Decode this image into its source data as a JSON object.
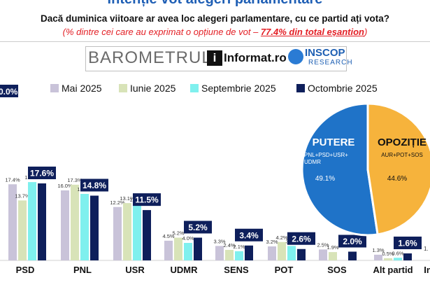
{
  "header": {
    "title": "Intenție vot alegeri parlamentare",
    "question": "Dacă duminica viitoare ar avea loc alegeri parlamentare, cu ce partid ați vota?",
    "subtitle_prefix": "(% dintre cei care au exprimat o opțiune de vot – ",
    "subtitle_highlight": "77.4% din total eșantion",
    "subtitle_suffix": ")"
  },
  "logos": {
    "barometrul": "BAROMETRUL",
    "informat": "Informat.ro",
    "info_mark": "i",
    "inscop": "INSCOP",
    "research": "RESEARCH"
  },
  "colors": {
    "mai": "#c9c3d9",
    "iunie": "#d8e3b8",
    "septembrie": "#7ff0ee",
    "octombrie": "#0e1f5b",
    "putere": "#1f73c8",
    "opozitie": "#f6b33c"
  },
  "chart_data": [
    {
      "type": "bar",
      "categories": [
        "PSD",
        "PNL",
        "USR",
        "UDMR",
        "SENS",
        "POT",
        "SOS",
        "Alt partid",
        "Ind"
      ],
      "series": [
        {
          "name": "Mai 2025",
          "values": [
            17.4,
            16.0,
            12.2,
            4.5,
            3.3,
            3.2,
            2.5,
            1.3,
            null
          ]
        },
        {
          "name": "Iunie 2025",
          "values": [
            13.7,
            17.3,
            13.1,
            5.2,
            2.4,
            4.2,
            1.9,
            0.5,
            null
          ]
        },
        {
          "name": "Septembrie 2025",
          "values": [
            17.9,
            15.2,
            12.8,
            4.0,
            2.1,
            3.3,
            null,
            0.6,
            null
          ]
        },
        {
          "name": "Octombrie 2025",
          "values": [
            17.6,
            14.8,
            11.5,
            5.2,
            3.4,
            2.6,
            2.0,
            1.6,
            null
          ]
        }
      ],
      "value_labels": {
        "Mai 2025": [
          "17.4%",
          "16.0%",
          "12.2%",
          "4.5%",
          "3.3%",
          "3.2%",
          "2.5%",
          "1.3%",
          ""
        ],
        "Iunie 2025": [
          "13.7%",
          "17.3%",
          "13.1%",
          "5.2%",
          "2.4%",
          "4.2%",
          "1.9%",
          "0.5%",
          ""
        ],
        "Septembrie 2025": [
          "17.9%",
          "15.2%",
          "12.8%",
          "4.0%",
          "2.1%",
          "3.3%",
          "",
          "0.6%",
          ""
        ],
        "Octombrie 2025": [
          "17.6%",
          "14.8%",
          "11.5%",
          "5.2%",
          "3.4%",
          "2.6%",
          "2.0%",
          "1.6%",
          ""
        ]
      },
      "partial_labels": {
        "top_left": "0.0%",
        "right_edge": "1."
      },
      "category_label_last": "In",
      "legend_position": "top"
    },
    {
      "type": "pie",
      "slices": [
        {
          "name": "PUTERE",
          "detail": "PNL+PSD+USR+UDMR",
          "value": 49.1,
          "label": "49.1%"
        },
        {
          "name": "OPOZIȚIE",
          "detail": "AUR+POT+SOS",
          "value": 44.6,
          "label": "44.6%"
        }
      ]
    }
  ]
}
